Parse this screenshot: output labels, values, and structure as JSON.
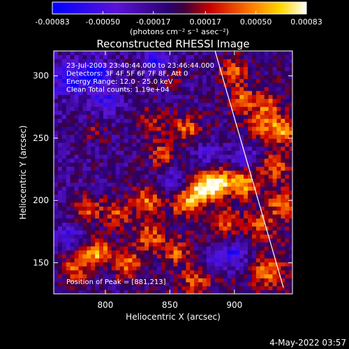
{
  "chart_data": {
    "type": "heatmap",
    "title": "Reconstructed RHESSI Image",
    "colorbar": {
      "ticks": [
        "-0.00083",
        "-0.00050",
        "-0.00017",
        "0.00017",
        "0.00050",
        "0.00083"
      ],
      "min": -0.00083,
      "max": 0.00083,
      "units_label": "(photons cm⁻² s⁻¹ asec⁻²)"
    },
    "xlabel": "Heliocentric X (arcsec)",
    "ylabel": "Heliocentric Y (arcsec)",
    "xlim": [
      760,
      945
    ],
    "ylim": [
      125,
      320
    ],
    "xticks": [
      800,
      850,
      900
    ],
    "yticks": [
      150,
      200,
      250,
      300
    ],
    "annotations": [
      "23-Jul-2003 23:40:44.000 to 23:46:44.000",
      "Detectors: 3F 4F 5F 6F 7F 8F, Att 0",
      "Energy Range: 12.0 - 25.0 keV",
      "Clean     Total counts: 1.19e+04"
    ],
    "peak_label": "Position of Peak = [881,213]",
    "peak": [
      881,
      213
    ],
    "limb_line": [
      [
        885,
        320
      ],
      [
        938,
        130
      ]
    ],
    "hot_spots": [
      {
        "x": 885,
        "y": 213,
        "v": 0.00083
      },
      {
        "x": 872,
        "y": 207,
        "v": 0.00072
      },
      {
        "x": 905,
        "y": 212,
        "v": 0.00068
      },
      {
        "x": 860,
        "y": 196,
        "v": 0.00055
      },
      {
        "x": 830,
        "y": 198,
        "v": 0.00058
      },
      {
        "x": 792,
        "y": 157,
        "v": 0.00066
      },
      {
        "x": 815,
        "y": 148,
        "v": 0.00055
      },
      {
        "x": 775,
        "y": 145,
        "v": 0.0005
      },
      {
        "x": 785,
        "y": 192,
        "v": 0.0005
      },
      {
        "x": 808,
        "y": 188,
        "v": 0.00045
      },
      {
        "x": 832,
        "y": 169,
        "v": 0.00052
      },
      {
        "x": 853,
        "y": 158,
        "v": 0.00046
      },
      {
        "x": 842,
        "y": 236,
        "v": 0.00045
      },
      {
        "x": 862,
        "y": 258,
        "v": 0.0005
      },
      {
        "x": 835,
        "y": 262,
        "v": 0.0004
      },
      {
        "x": 897,
        "y": 302,
        "v": 0.0005
      },
      {
        "x": 905,
        "y": 280,
        "v": 0.00045
      },
      {
        "x": 918,
        "y": 260,
        "v": 0.0004
      },
      {
        "x": 935,
        "y": 255,
        "v": 0.0006
      },
      {
        "x": 925,
        "y": 275,
        "v": 0.0004
      },
      {
        "x": 930,
        "y": 225,
        "v": 0.00042
      },
      {
        "x": 892,
        "y": 182,
        "v": 0.00045
      },
      {
        "x": 918,
        "y": 180,
        "v": 0.0004
      },
      {
        "x": 868,
        "y": 135,
        "v": 0.0004
      },
      {
        "x": 925,
        "y": 142,
        "v": 0.00045
      },
      {
        "x": 935,
        "y": 195,
        "v": 0.00042
      },
      {
        "x": 850,
        "y": 300,
        "v": 0.00025
      },
      {
        "x": 790,
        "y": 255,
        "v": 0.00022
      }
    ],
    "cold_spots": [
      {
        "x": 790,
        "y": 300,
        "v": -0.0007
      },
      {
        "x": 770,
        "y": 295,
        "v": -0.00055
      },
      {
        "x": 840,
        "y": 310,
        "v": -0.0005
      },
      {
        "x": 800,
        "y": 280,
        "v": -0.0004
      },
      {
        "x": 898,
        "y": 155,
        "v": -0.00055
      },
      {
        "x": 878,
        "y": 235,
        "v": -0.0003
      },
      {
        "x": 905,
        "y": 235,
        "v": -0.00035
      },
      {
        "x": 850,
        "y": 215,
        "v": -0.0003
      },
      {
        "x": 770,
        "y": 170,
        "v": -0.00035
      },
      {
        "x": 880,
        "y": 150,
        "v": -0.0003
      }
    ]
  },
  "footer": {
    "timestamp": "4-May-2022 03:57"
  },
  "colors": {
    "background": "#000000",
    "text": "#ffffff",
    "limb": "#ffffff"
  }
}
